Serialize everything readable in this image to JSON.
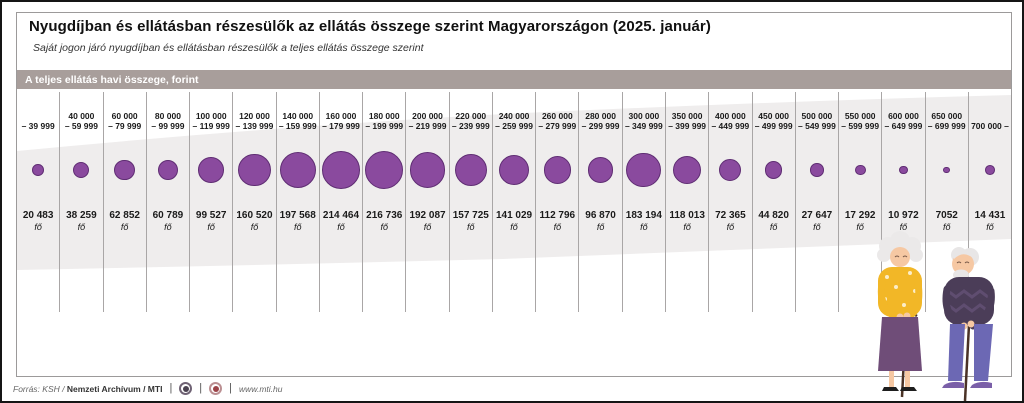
{
  "page": {
    "title": "Nyugdíjban és ellátásban részesülők az ellátás összege szerint Magyarországon (2025. január)",
    "subtitle": "Saját jogon járó nyugdíjban és ellátásban részesülők a teljes ellátás összege szerint"
  },
  "axis_bar": {
    "label": "A teljes ellátás havi összege, forint"
  },
  "footer": {
    "source_prefix": "Forrás: KSH /",
    "source_bold_1": "Nemzeti Archívum",
    "source_bold_2": "/ MTI",
    "url": "www.mti.hu",
    "badges": [
      "mti-logo",
      "mti-logo-red"
    ]
  },
  "colors": {
    "bubble_fill": "#8a4a9e",
    "bubble_stroke": "#5f2d73",
    "bar_bg": "#a89e9b",
    "swoosh": "#efeded"
  },
  "chart_data": {
    "type": "scatter",
    "encoding": "proportional-bubble-size",
    "title": "Nyugdíjban és ellátásban részesülők az ellátás összege szerint Magyarországon (2025. január)",
    "subtitle": "Saját jogon járó nyugdíjban és ellátásban részesülők a teljes ellátás összege szerint",
    "xlabel": "A teljes ellátás havi összege, forint",
    "unit": "fő",
    "legend": "none",
    "max_value": 216736,
    "categories": [
      "– 39 999",
      "40 000 – 59 999",
      "60 000 – 79 999",
      "80 000 – 99 999",
      "100 000 – 119 999",
      "120 000 – 139 999",
      "140 000 – 159 999",
      "160 000 – 179 999",
      "180 000 – 199 999",
      "200 000 – 219 999",
      "220 000 – 239 999",
      "240 000 – 259 999",
      "260 000 – 279 999",
      "280 000 – 299 999",
      "300 000 – 349 999",
      "350 000 – 399 999",
      "400 000 – 449 999",
      "450 000 – 499 999",
      "500 000 – 549 999",
      "550 000 – 599 999",
      "600 000 – 649 999",
      "650 000 – 699 999",
      "700 000 –"
    ],
    "values": [
      20483,
      38259,
      62852,
      60789,
      99527,
      160520,
      197568,
      214464,
      216736,
      192087,
      157725,
      141029,
      112796,
      96870,
      183194,
      118013,
      72365,
      44820,
      27647,
      17292,
      10972,
      7052,
      14431
    ],
    "columns": [
      {
        "range_top": "",
        "range_bottom": "– 39 999",
        "count": "20 483",
        "value": 20483
      },
      {
        "range_top": "40 000",
        "range_bottom": "– 59 999",
        "count": "38 259",
        "value": 38259
      },
      {
        "range_top": "60 000",
        "range_bottom": "– 79 999",
        "count": "62 852",
        "value": 62852
      },
      {
        "range_top": "80 000",
        "range_bottom": "– 99 999",
        "count": "60 789",
        "value": 60789
      },
      {
        "range_top": "100 000",
        "range_bottom": "– 119 999",
        "count": "99 527",
        "value": 99527
      },
      {
        "range_top": "120 000",
        "range_bottom": "– 139 999",
        "count": "160 520",
        "value": 160520
      },
      {
        "range_top": "140 000",
        "range_bottom": "– 159 999",
        "count": "197 568",
        "value": 197568
      },
      {
        "range_top": "160 000",
        "range_bottom": "– 179 999",
        "count": "214 464",
        "value": 214464
      },
      {
        "range_top": "180 000",
        "range_bottom": "– 199 999",
        "count": "216 736",
        "value": 216736
      },
      {
        "range_top": "200 000",
        "range_bottom": "– 219 999",
        "count": "192 087",
        "value": 192087
      },
      {
        "range_top": "220 000",
        "range_bottom": "– 239 999",
        "count": "157 725",
        "value": 157725
      },
      {
        "range_top": "240 000",
        "range_bottom": "– 259 999",
        "count": "141 029",
        "value": 141029
      },
      {
        "range_top": "260 000",
        "range_bottom": "– 279 999",
        "count": "112 796",
        "value": 112796
      },
      {
        "range_top": "280 000",
        "range_bottom": "– 299 999",
        "count": "96 870",
        "value": 96870
      },
      {
        "range_top": "300 000",
        "range_bottom": "– 349 999",
        "count": "183 194",
        "value": 183194
      },
      {
        "range_top": "350 000",
        "range_bottom": "– 399 999",
        "count": "118 013",
        "value": 118013
      },
      {
        "range_top": "400 000",
        "range_bottom": "– 449 999",
        "count": "72 365",
        "value": 72365
      },
      {
        "range_top": "450 000",
        "range_bottom": "– 499 999",
        "count": "44 820",
        "value": 44820
      },
      {
        "range_top": "500 000",
        "range_bottom": "– 549 999",
        "count": "27 647",
        "value": 27647
      },
      {
        "range_top": "550 000",
        "range_bottom": "– 599 999",
        "count": "17 292",
        "value": 17292
      },
      {
        "range_top": "600 000",
        "range_bottom": "– 649 999",
        "count": "10 972",
        "value": 10972
      },
      {
        "range_top": "650 000",
        "range_bottom": "– 699 999",
        "count": "7052",
        "value": 7052
      },
      {
        "range_top": "700 000 –",
        "range_bottom": "",
        "count": "14 431",
        "value": 14431
      }
    ]
  }
}
